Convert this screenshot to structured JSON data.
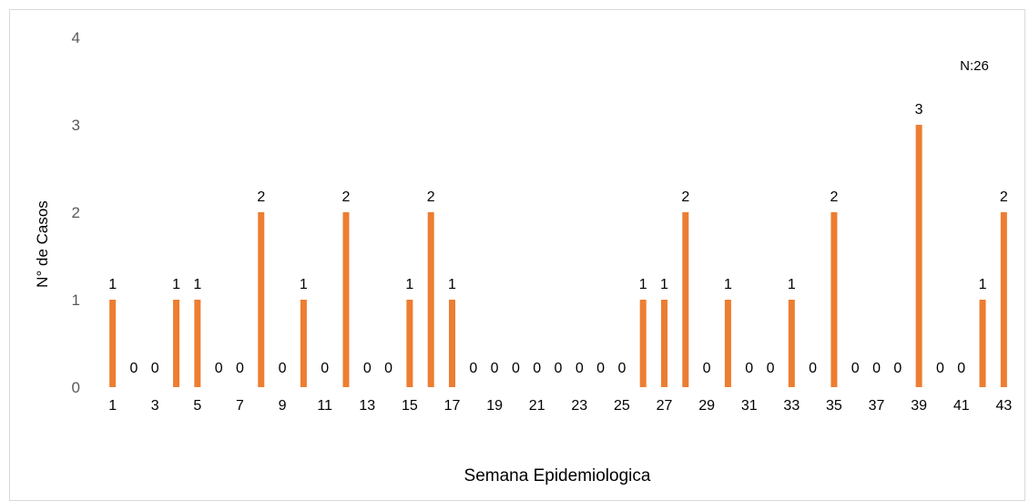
{
  "chart_data": {
    "type": "bar",
    "title": "",
    "annotation": "N:26",
    "xlabel": "Semana Epidemiologica",
    "ylabel": "N° de Casos",
    "ylim": [
      0,
      4
    ],
    "yticks": [
      "0",
      "1",
      "2",
      "3",
      "4"
    ],
    "grid": false,
    "categories": [
      "1",
      "2",
      "3",
      "4",
      "5",
      "6",
      "7",
      "8",
      "9",
      "10",
      "11",
      "12",
      "13",
      "14",
      "15",
      "16",
      "17",
      "18",
      "19",
      "20",
      "21",
      "22",
      "23",
      "24",
      "25",
      "26",
      "27",
      "28",
      "29",
      "30",
      "31",
      "32",
      "33",
      "34",
      "35",
      "36",
      "37",
      "38",
      "39",
      "40",
      "41",
      "42",
      "43"
    ],
    "x_tick_labels": [
      "1",
      "",
      "3",
      "",
      "5",
      "",
      "7",
      "",
      "9",
      "",
      "11",
      "",
      "13",
      "",
      "15",
      "",
      "17",
      "",
      "19",
      "",
      "21",
      "",
      "23",
      "",
      "25",
      "",
      "27",
      "",
      "29",
      "",
      "31",
      "",
      "33",
      "",
      "35",
      "",
      "37",
      "",
      "39",
      "",
      "41",
      "",
      "43"
    ],
    "values": [
      1,
      0,
      0,
      1,
      1,
      0,
      0,
      2,
      0,
      1,
      0,
      2,
      0,
      0,
      1,
      2,
      1,
      0,
      0,
      0,
      0,
      0,
      0,
      0,
      0,
      1,
      1,
      2,
      0,
      1,
      0,
      0,
      1,
      0,
      2,
      0,
      0,
      0,
      3,
      0,
      0,
      1,
      2
    ],
    "bar_color": "#ED7D31",
    "axis_text_color": "#595959",
    "data_label_color": "#000000"
  }
}
